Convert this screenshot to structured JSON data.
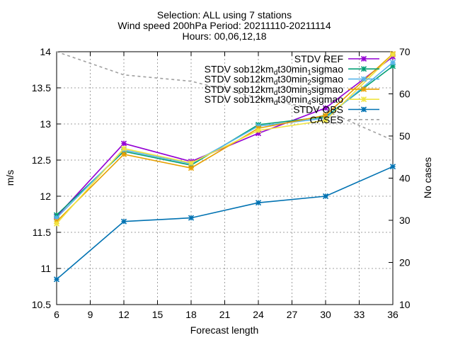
{
  "chart_data": {
    "type": "line",
    "title_lines": [
      "Selection: ALL using     7 stations",
      "Wind speed 200hPa   Period: 20211110-20211114",
      "Hours: 00,06,12,18"
    ],
    "xlabel": "Forecast length",
    "ylabel": "m/s",
    "y2label": "No cases",
    "xlim": [
      6,
      36
    ],
    "ylim": [
      10.5,
      14
    ],
    "y2lim": [
      10,
      70
    ],
    "xticks": [
      6,
      9,
      12,
      15,
      18,
      21,
      24,
      27,
      30,
      33,
      36
    ],
    "yticks": [
      10.5,
      11,
      11.5,
      12,
      12.5,
      13,
      13.5,
      14
    ],
    "ytick_labels": [
      "10.5",
      "11",
      "11.5",
      "12",
      "12.5",
      "13",
      "13.5",
      "14"
    ],
    "y2ticks": [
      10,
      20,
      30,
      40,
      50,
      60,
      70
    ],
    "grid": true,
    "legend_position": "top-right",
    "x": [
      6,
      12,
      18,
      24,
      30,
      36
    ],
    "series": [
      {
        "label_main": "STDV REF",
        "sub1": "",
        "mid": "",
        "sub2": "",
        "tail": "",
        "color": "#9400d3",
        "axis": "y1",
        "values": [
          11.72,
          12.73,
          12.48,
          12.87,
          13.22,
          13.93
        ]
      },
      {
        "label_main": "STDV sob12km",
        "sub1": "d",
        "mid": "t30min",
        "sub2": "1",
        "tail": "sigmao",
        "color": "#009e73",
        "axis": "y1",
        "values": [
          11.74,
          12.62,
          12.43,
          12.99,
          13.1,
          13.8
        ]
      },
      {
        "label_main": "STDV sob12km",
        "sub1": "d",
        "mid": "t30min",
        "sub2": "2",
        "tail": "sigmao",
        "color": "#56b4e9",
        "axis": "y1",
        "values": [
          11.7,
          12.64,
          12.45,
          12.97,
          13.08,
          13.85
        ]
      },
      {
        "label_main": "STDV sob12km",
        "sub1": "d",
        "mid": "t30min",
        "sub2": "3",
        "tail": "sigmao",
        "color": "#e69f00",
        "axis": "y1",
        "values": [
          11.65,
          12.58,
          12.39,
          12.94,
          13.12,
          13.97
        ]
      },
      {
        "label_main": "STDV sob12km",
        "sub1": "d",
        "mid": "t30min",
        "sub2": "4",
        "tail": "sigmao",
        "color": "#f0e442",
        "axis": "y1",
        "values": [
          11.62,
          12.66,
          12.46,
          12.91,
          13.05,
          13.96
        ]
      },
      {
        "label_main": "STDV OBS",
        "sub1": "",
        "mid": "",
        "sub2": "",
        "tail": "",
        "color": "#0072b2",
        "axis": "y1",
        "values": [
          10.85,
          11.65,
          11.7,
          11.91,
          12.0,
          12.41
        ]
      },
      {
        "label_main": "CASES",
        "sub1": "",
        "mid": "",
        "sub2": "",
        "tail": "",
        "color": "#a0a0a0",
        "axis": "y2",
        "values": [
          70,
          64.5,
          63,
          59,
          56,
          49
        ]
      }
    ]
  }
}
